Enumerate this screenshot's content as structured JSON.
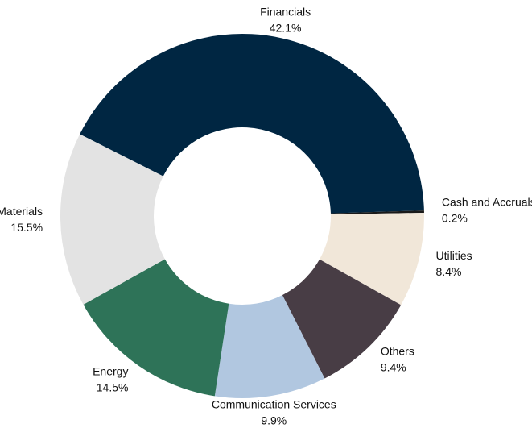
{
  "chart_data": {
    "type": "donut",
    "categories": [
      "Financials",
      "Cash and Accruals",
      "Utilities",
      "Others",
      "Communication Services",
      "Energy",
      "Materials"
    ],
    "values": [
      42.1,
      0.2,
      8.4,
      9.4,
      9.9,
      14.5,
      15.5
    ],
    "value_labels": [
      "42.1%",
      "0.2%",
      "8.4%",
      "9.4%",
      "9.9%",
      "14.5%",
      "15.5%"
    ],
    "colors": [
      "#002642",
      "#1a1a1a",
      "#f1e7d9",
      "#483d45",
      "#b1c7e0",
      "#2e7358",
      "#e3e3e3"
    ]
  }
}
